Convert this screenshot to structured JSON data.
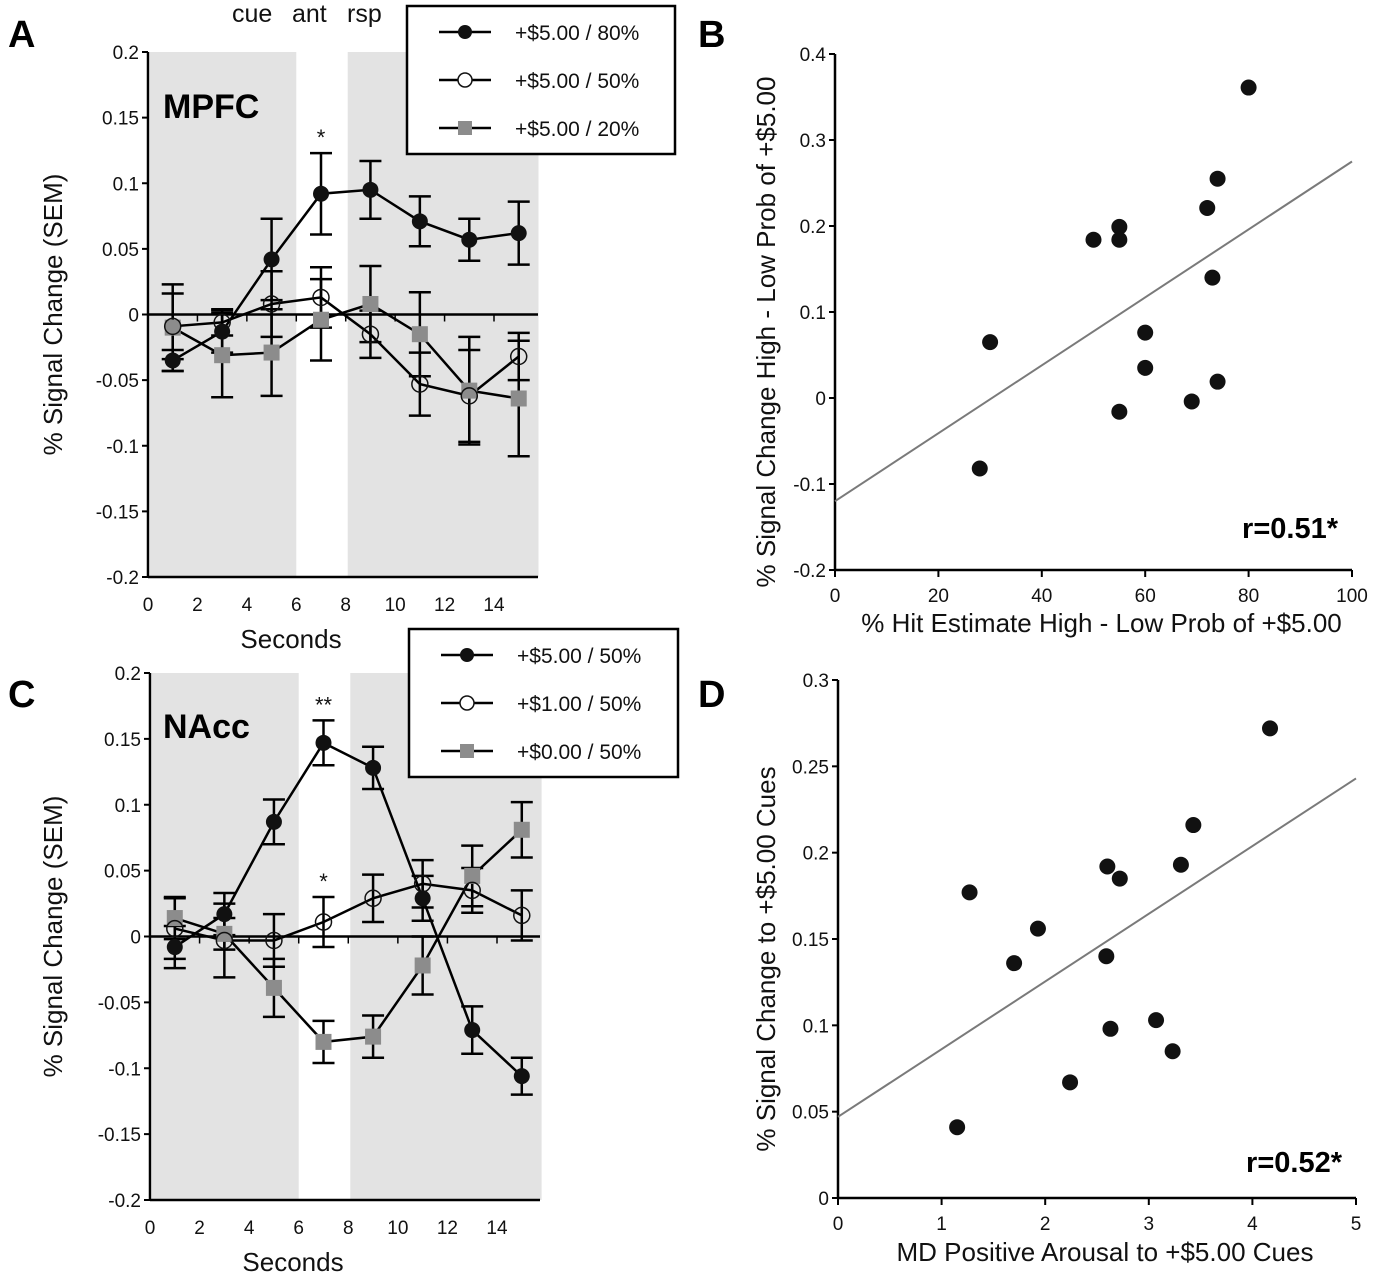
{
  "chart_data": [
    {
      "panel": "A",
      "type": "line",
      "region_label": "MPFC",
      "phase_labels": [
        "cue",
        "ant",
        "rsp"
      ],
      "xlabel": "Seconds",
      "ylabel": "% Signal Change (SEM)",
      "xlim": [
        0,
        15.8
      ],
      "ylim": [
        -0.2,
        0.2
      ],
      "xticks": [
        0,
        2,
        4,
        6,
        8,
        10,
        12,
        14
      ],
      "yticks": [
        0.2,
        0.15,
        0.1,
        0.05,
        0,
        -0.05,
        -0.1,
        -0.15,
        -0.2
      ],
      "ytick_labels": [
        "0.2",
        "0.15",
        "0.1",
        "0.05",
        "0",
        "-0.05",
        "-0.1",
        "-0.15",
        "-0.2"
      ],
      "shaded_regions": [
        [
          0,
          6
        ],
        [
          8,
          15.8
        ]
      ],
      "x": [
        1,
        3,
        5,
        7,
        9,
        11,
        13,
        15
      ],
      "legend_position": "top-right",
      "series": [
        {
          "name": "+$5.00 / 80%",
          "marker": "filled-circle",
          "values": [
            -0.035,
            -0.013,
            0.042,
            0.092,
            0.095,
            0.071,
            0.057,
            0.062
          ],
          "sem": [
            0.008,
            0.016,
            0.031,
            0.031,
            0.022,
            0.019,
            0.016,
            0.024
          ]
        },
        {
          "name": "+$5.00 / 50%",
          "marker": "open-circle",
          "values": [
            -0.009,
            -0.006,
            0.008,
            0.013,
            -0.015,
            -0.053,
            -0.062,
            -0.032
          ],
          "sem": [
            0.025,
            0.01,
            0.025,
            0.023,
            0.018,
            0.024,
            0.035,
            0.018
          ]
        },
        {
          "name": "+$5.00 / 20%",
          "marker": "gray-square",
          "values": [
            -0.01,
            -0.031,
            -0.029,
            -0.004,
            0.008,
            -0.015,
            -0.058,
            -0.064
          ],
          "sem": [
            0.033,
            0.032,
            0.033,
            0.031,
            0.029,
            0.032,
            0.041,
            0.044
          ]
        }
      ],
      "significance": [
        {
          "x": 7,
          "label": "*"
        }
      ]
    },
    {
      "panel": "B",
      "type": "scatter",
      "xlabel": "% Hit Estimate High - Low Prob of +$5.00",
      "ylabel": "% Signal Change High - Low Prob of +$5.00",
      "xlim": [
        0,
        100
      ],
      "ylim": [
        -0.2,
        0.4
      ],
      "xticks": [
        0,
        20,
        40,
        60,
        80,
        100
      ],
      "yticks": [
        0.4,
        0.3,
        0.2,
        0.1,
        0,
        -0.1,
        -0.2
      ],
      "ytick_labels": [
        "0.4",
        "0.3",
        "0.2",
        "0.1",
        "0",
        "-0.1",
        "-0.2"
      ],
      "points": [
        {
          "x": 28,
          "y": -0.082
        },
        {
          "x": 30,
          "y": 0.065
        },
        {
          "x": 50,
          "y": 0.184
        },
        {
          "x": 55,
          "y": 0.199
        },
        {
          "x": 55,
          "y": 0.184
        },
        {
          "x": 55,
          "y": -0.016
        },
        {
          "x": 60,
          "y": 0.076
        },
        {
          "x": 60,
          "y": 0.035
        },
        {
          "x": 69,
          "y": -0.004
        },
        {
          "x": 72,
          "y": 0.221
        },
        {
          "x": 73,
          "y": 0.14
        },
        {
          "x": 74,
          "y": 0.255
        },
        {
          "x": 74,
          "y": 0.019
        },
        {
          "x": 80,
          "y": 0.361
        }
      ],
      "fit_line": {
        "intercept": -0.12,
        "slope": 0.00395
      },
      "annotation": "r=0.51*"
    },
    {
      "panel": "C",
      "type": "line",
      "region_label": "NAcc",
      "xlabel": "Seconds",
      "ylabel": "% Signal Change (SEM)",
      "xlim": [
        0,
        15.8
      ],
      "ylim": [
        -0.2,
        0.2
      ],
      "xticks": [
        0,
        2,
        4,
        6,
        8,
        10,
        12,
        14
      ],
      "yticks": [
        0.2,
        0.15,
        0.1,
        0.05,
        0,
        -0.05,
        -0.1,
        -0.15,
        -0.2
      ],
      "ytick_labels": [
        "0.2",
        "0.15",
        "0.1",
        "0.05",
        "0",
        "-0.05",
        "-0.1",
        "-0.15",
        "-0.2"
      ],
      "shaded_regions": [
        [
          0,
          6
        ],
        [
          8,
          15.8
        ]
      ],
      "x": [
        1,
        3,
        5,
        7,
        9,
        11,
        13,
        15
      ],
      "legend_position": "top-right",
      "series": [
        {
          "name": "+$5.00 / 50%",
          "marker": "filled-circle",
          "values": [
            -0.008,
            0.017,
            0.087,
            0.147,
            0.128,
            0.029,
            -0.071,
            -0.106
          ],
          "sem": [
            0.016,
            0.016,
            0.017,
            0.017,
            0.016,
            0.017,
            0.018,
            0.014
          ]
        },
        {
          "name": "+$1.00 / 50%",
          "marker": "open-circle",
          "values": [
            0.006,
            -0.003,
            -0.003,
            0.011,
            0.029,
            0.04,
            0.035,
            0.016
          ],
          "sem": [
            0.023,
            0.028,
            0.02,
            0.019,
            0.018,
            0.018,
            0.017,
            0.019
          ]
        },
        {
          "name": "+$0.00 / 50%",
          "marker": "gray-square",
          "values": [
            0.014,
            0.002,
            -0.039,
            -0.08,
            -0.076,
            -0.022,
            0.046,
            0.081
          ],
          "sem": [
            0.016,
            0.012,
            0.022,
            0.016,
            0.016,
            0.022,
            0.023,
            0.021
          ]
        }
      ],
      "significance": [
        {
          "x": 7,
          "label": "**",
          "series": 0
        },
        {
          "x": 7,
          "label": "*",
          "series": 1
        }
      ]
    },
    {
      "panel": "D",
      "type": "scatter",
      "xlabel": "MD Positive Arousal to +$5.00 Cues",
      "ylabel": "% Signal Change to +$5.00 Cues",
      "xlim": [
        0,
        5
      ],
      "ylim": [
        0,
        0.3
      ],
      "xticks": [
        0,
        1,
        2,
        3,
        4,
        5
      ],
      "yticks": [
        0.3,
        0.25,
        0.2,
        0.15,
        0.1,
        0.05,
        0
      ],
      "ytick_labels": [
        "0.3",
        "0.25",
        "0.2",
        "0.15",
        "0.1",
        "0.05",
        "0"
      ],
      "points": [
        {
          "x": 1.15,
          "y": 0.041
        },
        {
          "x": 1.27,
          "y": 0.177
        },
        {
          "x": 1.7,
          "y": 0.136
        },
        {
          "x": 1.93,
          "y": 0.156
        },
        {
          "x": 2.24,
          "y": 0.067
        },
        {
          "x": 2.6,
          "y": 0.192
        },
        {
          "x": 2.59,
          "y": 0.14
        },
        {
          "x": 2.63,
          "y": 0.098
        },
        {
          "x": 2.72,
          "y": 0.185
        },
        {
          "x": 3.07,
          "y": 0.103
        },
        {
          "x": 3.23,
          "y": 0.085
        },
        {
          "x": 3.31,
          "y": 0.193
        },
        {
          "x": 3.43,
          "y": 0.216
        },
        {
          "x": 4.17,
          "y": 0.272
        }
      ],
      "fit_line": {
        "intercept": 0.047,
        "slope": 0.0392
      },
      "annotation": "r=0.52*"
    }
  ],
  "panel_letters": [
    "A",
    "B",
    "C",
    "D"
  ]
}
